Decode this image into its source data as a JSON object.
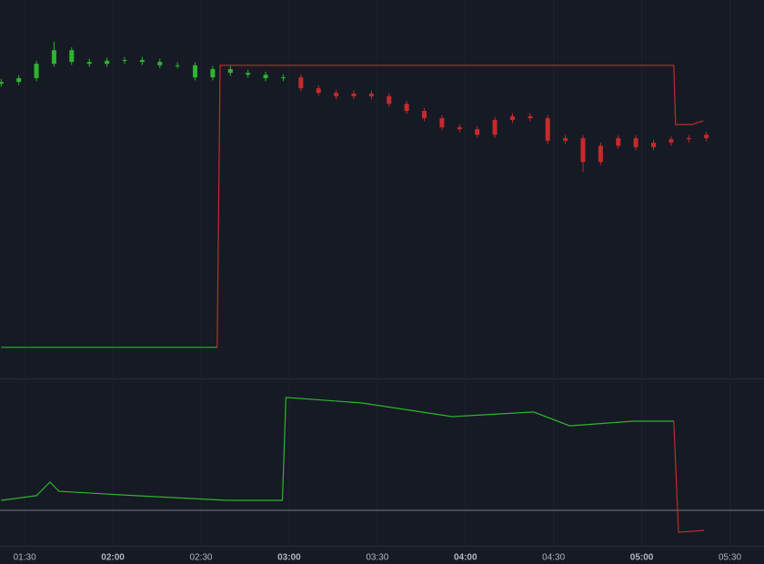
{
  "chart_data": [
    {
      "type": "candlestick",
      "xlim": [
        81.6,
        341.6
      ],
      "ylim": [
        0,
        100
      ],
      "grid": true,
      "xticks": [
        90,
        120,
        150,
        180,
        210,
        240,
        270,
        300,
        330
      ],
      "series": [
        {
          "color": "#2db52d",
          "x": [
            82,
            88,
            94,
            100,
            106,
            112,
            118,
            124,
            130,
            136,
            142,
            148,
            154,
            160,
            166,
            172,
            178
          ],
          "open": [
            77.8,
            78.3,
            79.3,
            83.1,
            86.7,
            83.6,
            83.1,
            83.9,
            84.1,
            83.6,
            82.7,
            82.7,
            79.5,
            81.7,
            80.7,
            80.2,
            79.3
          ],
          "high": [
            79.1,
            80.1,
            83.9,
            89.0,
            87.5,
            84.4,
            84.7,
            84.9,
            84.9,
            84.4,
            83.5,
            83.5,
            82.5,
            82.5,
            81.5,
            81.0,
            80.3
          ],
          "low": [
            77.0,
            77.5,
            78.5,
            82.3,
            82.8,
            82.3,
            82.3,
            83.1,
            82.8,
            81.9,
            81.9,
            78.7,
            78.7,
            79.9,
            79.4,
            78.5,
            78.5
          ],
          "close": [
            78.3,
            79.3,
            83.1,
            86.7,
            83.6,
            83.1,
            83.9,
            84.1,
            83.6,
            82.7,
            82.7,
            79.5,
            81.7,
            80.7,
            80.2,
            79.3,
            79.5
          ]
        },
        {
          "color": "#c42b2b",
          "x": [
            184,
            190,
            196,
            202,
            208,
            214,
            220,
            226,
            232,
            238,
            244,
            250,
            256,
            262,
            268,
            274,
            280,
            286,
            292,
            298,
            304,
            310,
            316,
            322
          ],
          "open": [
            79.5,
            76.6,
            75.4,
            74.5,
            75.2,
            74.5,
            72.5,
            70.6,
            68.7,
            66.3,
            65.8,
            64.3,
            68.2,
            69.2,
            68.7,
            62.7,
            63.4,
            57.1,
            61.4,
            63.4,
            61.0,
            62.2,
            63.1,
            63.4
          ],
          "high": [
            80.3,
            77.4,
            76.2,
            76.0,
            76.0,
            75.3,
            73.3,
            71.4,
            69.5,
            67.1,
            66.6,
            69.0,
            70.0,
            70.0,
            69.5,
            64.2,
            64.2,
            62.2,
            64.2,
            64.2,
            63.0,
            63.9,
            64.2,
            65.1
          ],
          "low": [
            75.8,
            74.6,
            73.7,
            73.7,
            73.7,
            71.7,
            69.8,
            67.9,
            65.5,
            65.0,
            63.5,
            63.5,
            67.4,
            67.9,
            61.9,
            61.9,
            54.5,
            56.3,
            60.6,
            60.2,
            60.2,
            61.4,
            62.3,
            62.6
          ],
          "close": [
            76.6,
            75.4,
            74.5,
            75.2,
            74.5,
            72.5,
            70.6,
            68.7,
            66.3,
            65.8,
            64.3,
            68.2,
            69.2,
            68.7,
            62.7,
            63.4,
            57.1,
            61.4,
            63.4,
            61.0,
            62.2,
            63.1,
            63.4,
            64.3
          ]
        }
      ],
      "lines": [
        {
          "color": "#2db52d",
          "x": [
            82,
            155.5
          ],
          "values": [
            8,
            8
          ]
        },
        {
          "color": "#c42b2b",
          "x": [
            155.5,
            156.5,
            310.9,
            311.5,
            317,
            321
          ],
          "values": [
            8,
            82.7,
            82.7,
            67,
            67,
            68
          ]
        }
      ]
    },
    {
      "type": "line",
      "xlim": [
        81.6,
        341.6
      ],
      "ylim": [
        0,
        100
      ],
      "grid": true,
      "baseline": 21.7,
      "xticks": [
        {
          "value": 90,
          "label": "01:30"
        },
        {
          "value": 120,
          "label": "02:00"
        },
        {
          "value": 150,
          "label": "02:30"
        },
        {
          "value": 180,
          "label": "03:00"
        },
        {
          "value": 210,
          "label": "03:30"
        },
        {
          "value": 240,
          "label": "04:00"
        },
        {
          "value": 270,
          "label": "04:30"
        },
        {
          "value": 300,
          "label": "05:00"
        },
        {
          "value": 330,
          "label": "05:30"
        }
      ],
      "series": [
        {
          "color": "#2db52d",
          "x": [
            82,
            94,
            98.6,
            101.7,
            127.8,
            158.6,
            177.7,
            178.9,
            204.8,
            235.5,
            263.2,
            275.5,
            297.1,
            310.9
          ],
          "values": [
            27.8,
            30.6,
            38.9,
            33.3,
            30.6,
            27.8,
            27.8,
            90.6,
            87.2,
            78.9,
            81.7,
            73.3,
            76.1,
            76.1
          ]
        },
        {
          "color": "#c42b2b",
          "x": [
            310.9,
            312.5,
            321.1
          ],
          "values": [
            76.1,
            8.3,
            9.4
          ]
        }
      ]
    }
  ]
}
